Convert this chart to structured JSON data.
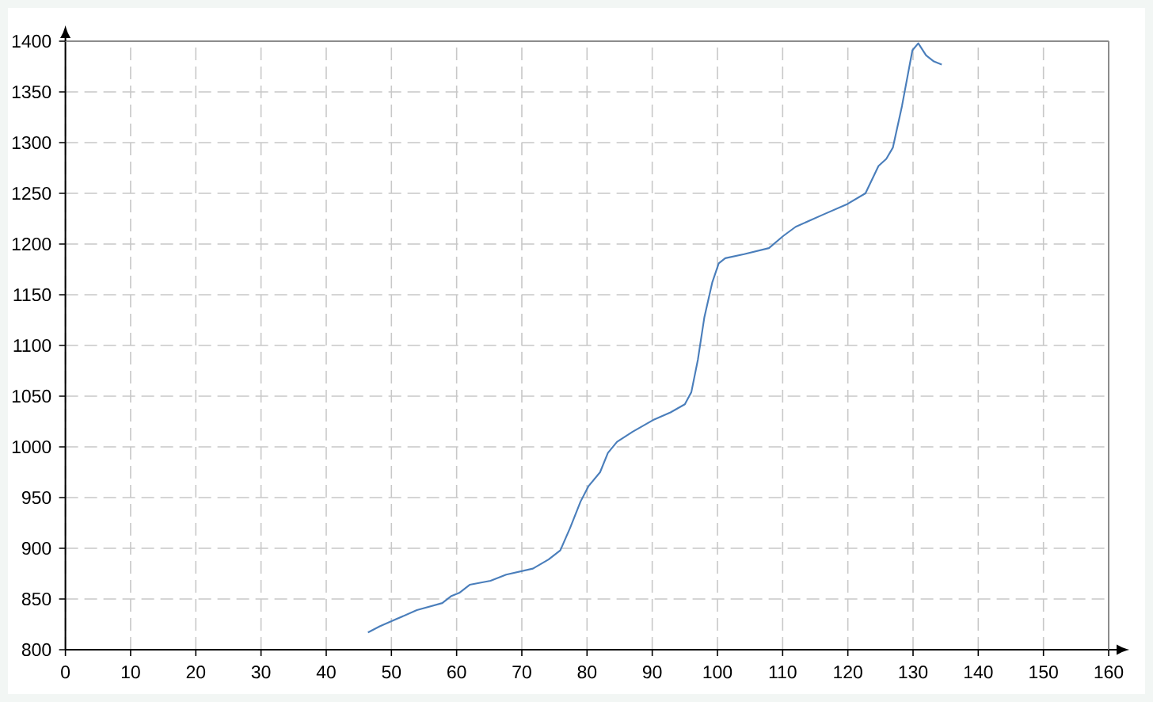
{
  "chart_data": {
    "type": "line",
    "x": [
      46.4,
      48.2,
      50.7,
      53.9,
      57.8,
      59.2,
      60.4,
      62.0,
      65.2,
      67.6,
      71.7,
      74.1,
      75.9,
      77.4,
      79.0,
      80.2,
      82.0,
      83.2,
      84.6,
      87.0,
      90.3,
      92.8,
      95.0,
      96.0,
      97.0,
      98.0,
      99.2,
      100.2,
      101.2,
      104.1,
      107.9,
      110.1,
      112.0,
      116.2,
      119.8,
      122.7,
      124.7,
      125.9,
      126.9,
      128.3,
      129.9,
      130.8,
      132.0,
      133.2,
      134.4
    ],
    "series": [
      {
        "color": "#4a7ebb",
        "values": [
          817,
          823,
          830,
          839,
          846,
          853,
          856,
          864,
          868,
          874,
          880,
          889,
          898,
          920,
          946,
          961,
          975,
          994,
          1005,
          1015,
          1027,
          1034,
          1042,
          1054,
          1086,
          1128,
          1162,
          1181,
          1186,
          1190,
          1196,
          1208,
          1217,
          1229,
          1239,
          1250,
          1277,
          1284,
          1295,
          1336,
          1391,
          1398,
          1386,
          1380,
          1377
        ]
      }
    ],
    "xlim": [
      0,
      160
    ],
    "ylim": [
      800,
      1400
    ],
    "xticks": [
      0,
      10,
      20,
      30,
      40,
      50,
      60,
      70,
      80,
      90,
      100,
      110,
      120,
      130,
      140,
      150,
      160
    ],
    "yticks": [
      800,
      850,
      900,
      950,
      1000,
      1050,
      1100,
      1150,
      1200,
      1250,
      1300,
      1350,
      1400
    ],
    "grid": true
  }
}
